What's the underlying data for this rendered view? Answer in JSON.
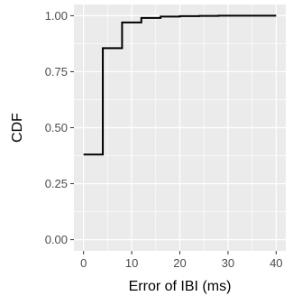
{
  "chart_data": {
    "type": "line",
    "subtype": "step-ecdf",
    "title": "",
    "xlabel": "Error of IBI (ms)",
    "ylabel": "CDF",
    "xlim": [
      -2,
      42
    ],
    "ylim": [
      -0.05,
      1.05
    ],
    "xticks": [
      0,
      10,
      20,
      30,
      40
    ],
    "xtick_labels": [
      "0",
      "10",
      "20",
      "30",
      "40"
    ],
    "yticks": [
      0,
      0.25,
      0.5,
      0.75,
      1.0
    ],
    "ytick_labels": [
      "0.00",
      "0.25",
      "0.50",
      "0.75",
      "1.00"
    ],
    "grid": true,
    "legend": "none",
    "colors": {
      "panel": "#ebebeb",
      "grid": "#ffffff",
      "line": "#000000"
    },
    "series": [
      {
        "x": [
          0,
          4,
          4,
          8,
          8,
          12,
          12,
          16,
          16,
          20,
          20,
          24,
          24,
          28,
          28,
          40
        ],
        "y": [
          0.38,
          0.38,
          0.855,
          0.855,
          0.97,
          0.97,
          0.99,
          0.99,
          0.996,
          0.996,
          0.998,
          0.998,
          0.999,
          0.999,
          1.0,
          1.0
        ]
      }
    ]
  }
}
